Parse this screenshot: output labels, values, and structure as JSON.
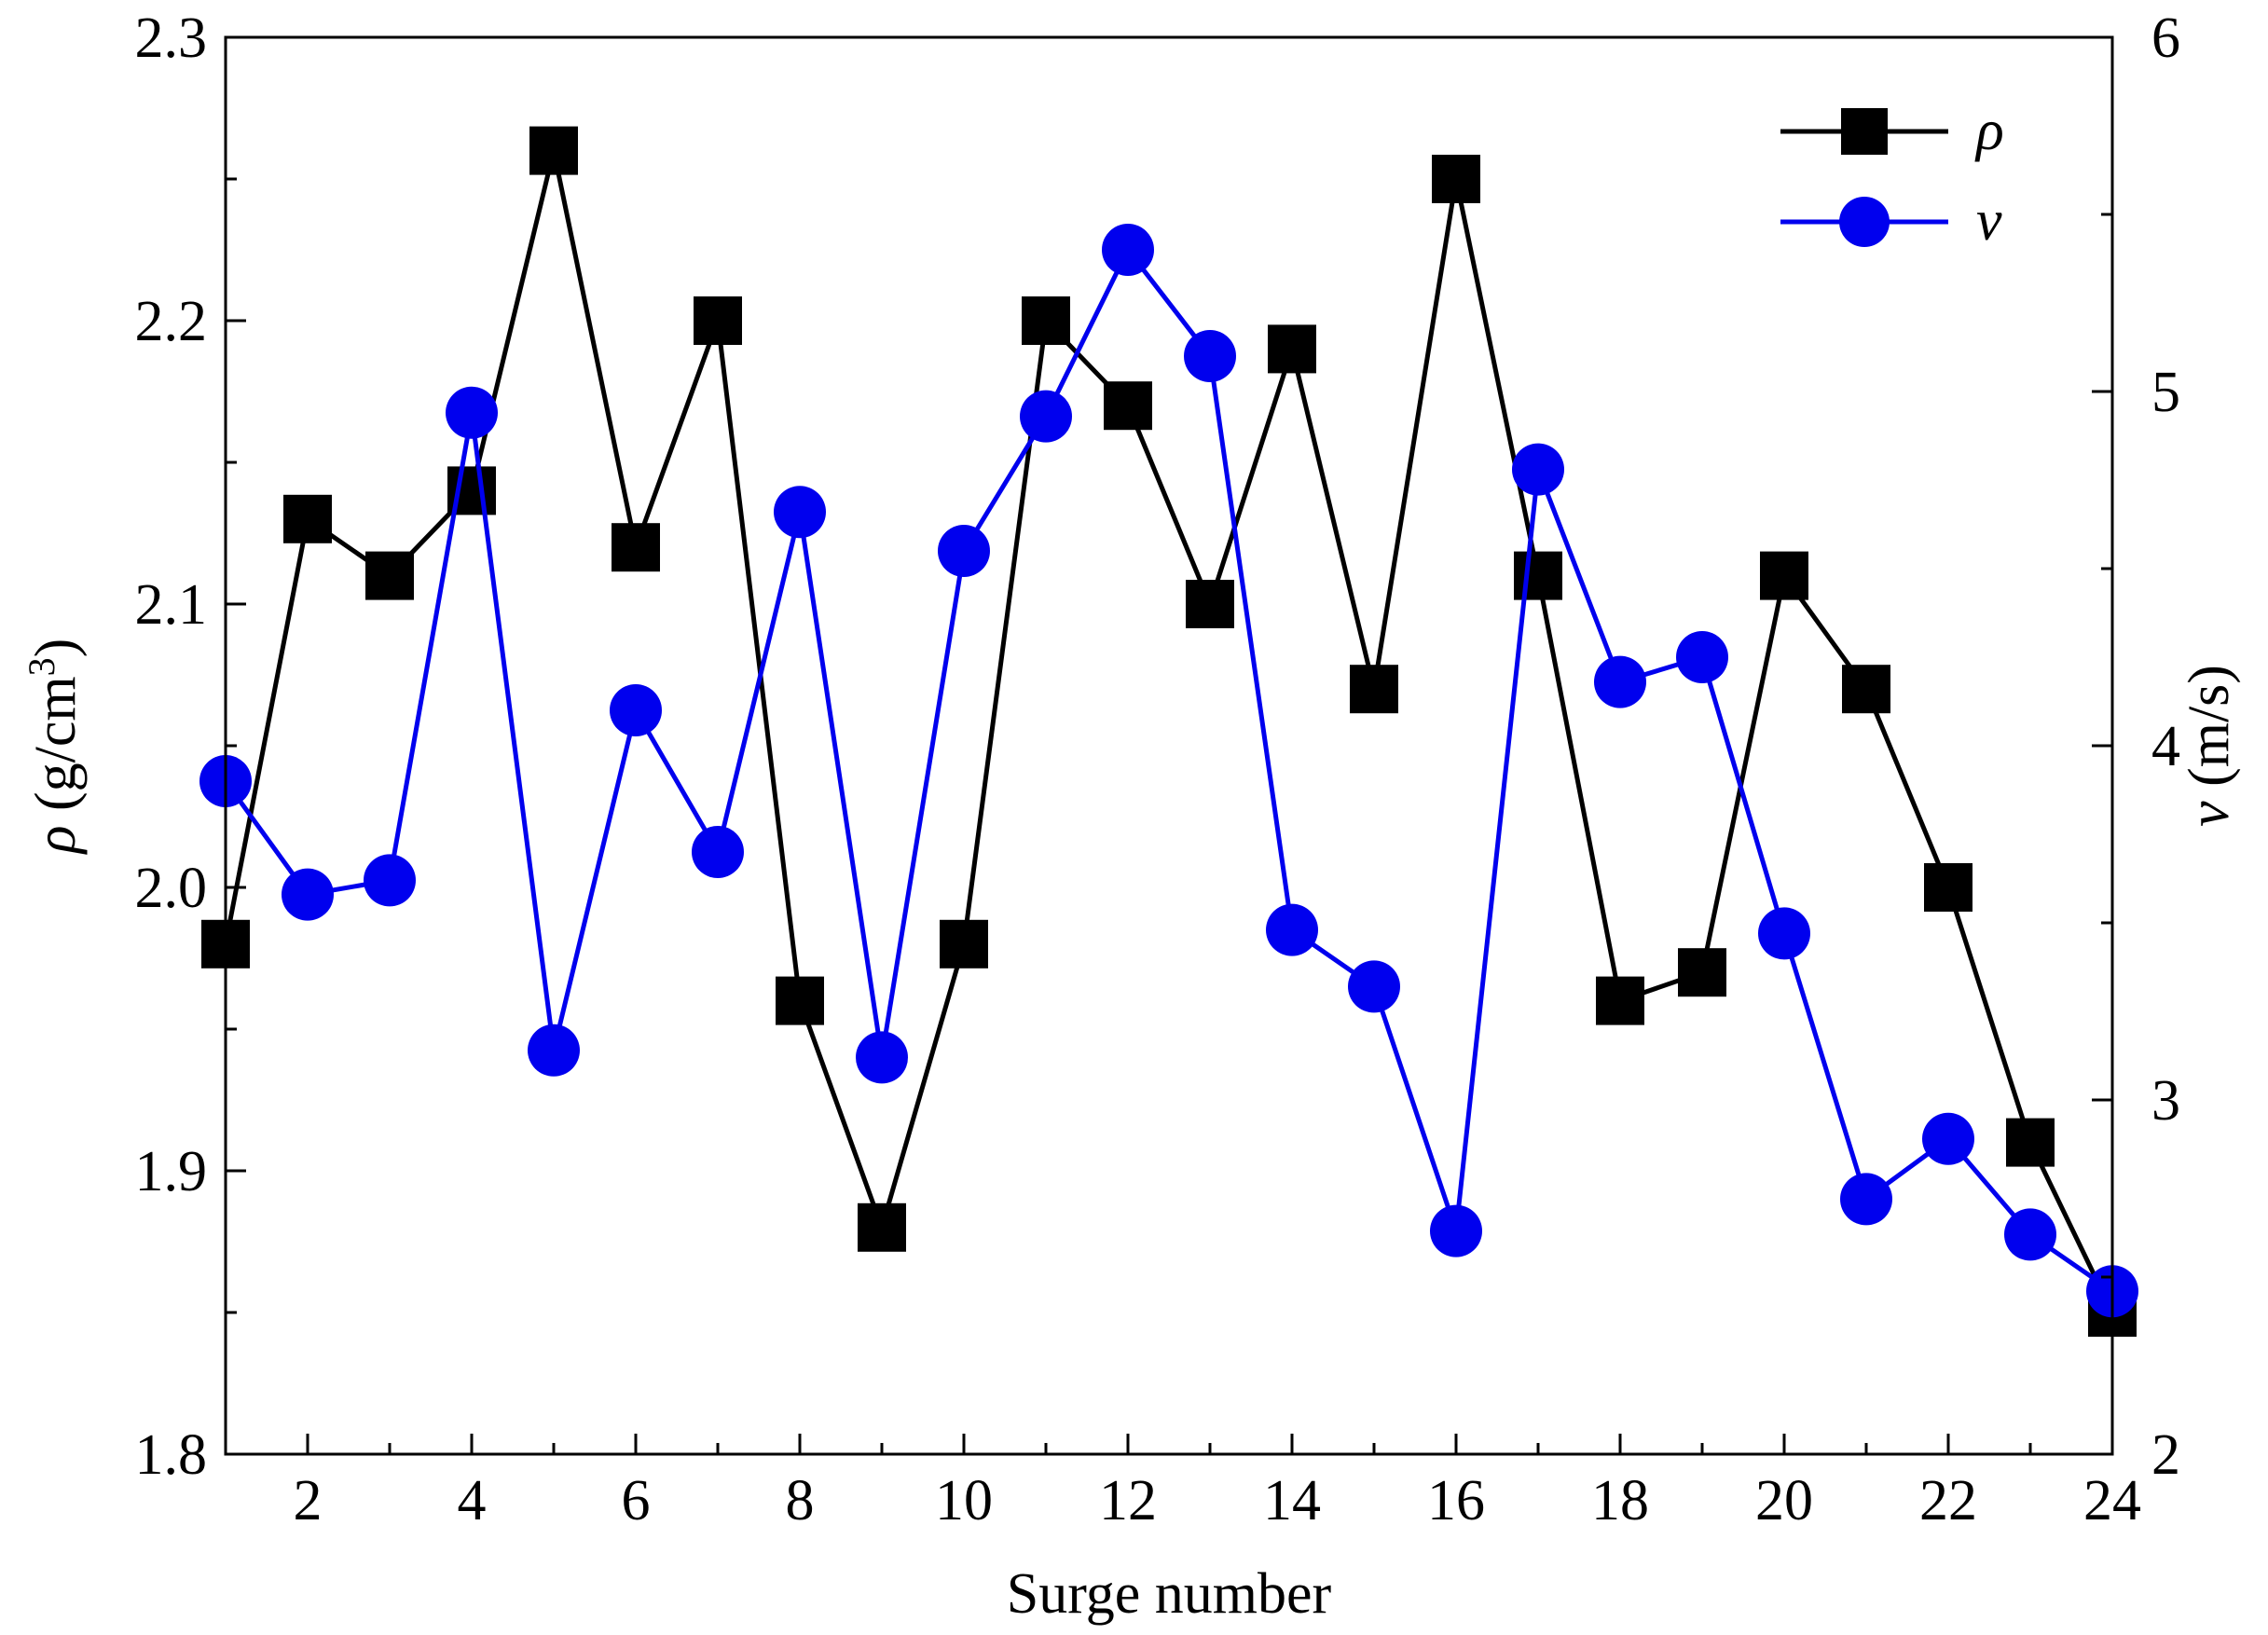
{
  "chart_data": {
    "type": "line",
    "xlabel": "Surge number",
    "x_ticks": [
      2,
      4,
      6,
      8,
      10,
      12,
      14,
      16,
      18,
      20,
      22,
      24
    ],
    "xlim": [
      1,
      24
    ],
    "y_left": {
      "label_symbol": "ρ",
      "label_text": " (g/cm",
      "label_sup": "3",
      "label_close": ")",
      "ylim": [
        1.8,
        2.3
      ],
      "ticks": [
        "1.8",
        "1.9",
        "2.0",
        "2.1",
        "2.2",
        "2.3"
      ],
      "tick_values": [
        1.8,
        1.9,
        2.0,
        2.1,
        2.2,
        2.3
      ]
    },
    "y_right": {
      "label_symbol": "v",
      "label_text": " (m/s)",
      "ylim": [
        2,
        6
      ],
      "ticks": [
        "2",
        "3",
        "4",
        "5",
        "6"
      ],
      "tick_values": [
        2,
        3,
        4,
        5,
        6
      ]
    },
    "x": [
      1,
      2,
      3,
      4,
      5,
      6,
      7,
      8,
      9,
      10,
      11,
      12,
      13,
      14,
      15,
      16,
      17,
      18,
      19,
      20,
      21,
      22,
      23,
      24
    ],
    "series": [
      {
        "name": "ρ",
        "axis": "left",
        "color": "#000000",
        "marker": "square",
        "values": [
          1.98,
          2.13,
          2.11,
          2.14,
          2.26,
          2.12,
          2.2,
          1.96,
          1.88,
          1.98,
          2.2,
          2.17,
          2.1,
          2.19,
          2.07,
          2.25,
          2.11,
          1.96,
          1.97,
          2.11,
          2.07,
          2.0,
          1.91,
          1.85
        ]
      },
      {
        "name": "v",
        "axis": "right",
        "color": "#0000ee",
        "marker": "circle",
        "values": [
          3.9,
          3.58,
          3.62,
          4.94,
          3.14,
          4.1,
          3.7,
          4.66,
          3.12,
          4.55,
          4.93,
          5.4,
          5.1,
          3.48,
          3.32,
          2.63,
          4.78,
          4.18,
          4.25,
          3.47,
          2.72,
          2.89,
          2.62,
          2.46
        ]
      }
    ],
    "legend_position": "top-right",
    "grid": false
  }
}
